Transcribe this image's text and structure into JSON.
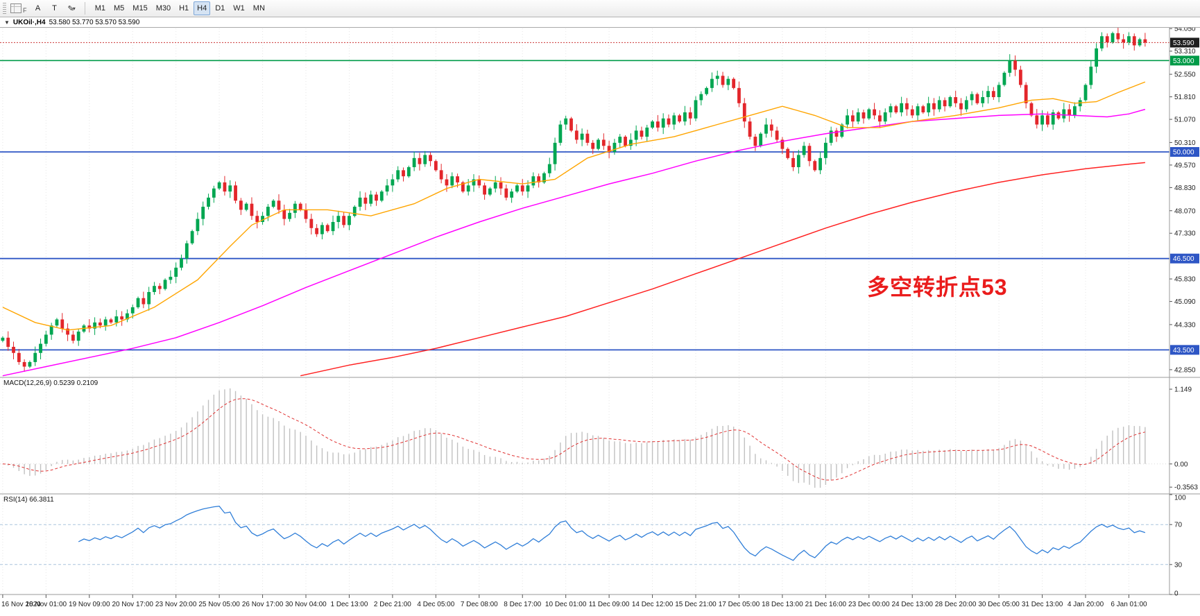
{
  "toolbar": {
    "f_label": "F",
    "buttons": [
      {
        "name": "annotate-tool",
        "label": "A"
      },
      {
        "name": "text-tool",
        "label": "T"
      },
      {
        "name": "draw-tool",
        "label": "✎"
      }
    ],
    "caret": "▾",
    "timeframes": [
      {
        "label": "M1",
        "active": false
      },
      {
        "label": "M5",
        "active": false
      },
      {
        "label": "M15",
        "active": false
      },
      {
        "label": "M30",
        "active": false
      },
      {
        "label": "H1",
        "active": false
      },
      {
        "label": "H4",
        "active": true
      },
      {
        "label": "D1",
        "active": false
      },
      {
        "label": "W1",
        "active": false
      },
      {
        "label": "MN",
        "active": false
      }
    ]
  },
  "chart": {
    "dropdown_icon": "▼",
    "title": "UKOil·,H4",
    "ohlc": "53.580 53.770 53.570 53.590",
    "annotation": "多空转折点53"
  },
  "macd_panel": {
    "label": "MACD(12,26,9) 0.5239 0.2109"
  },
  "rsi_panel": {
    "label": "RSI(14) 66.3811"
  },
  "colors": {
    "up": "#00A651",
    "down": "#E3262B",
    "ma_fast": "#FFA500",
    "ma_mid": "#FF00FF",
    "ma_slow": "#FF2020",
    "macd_hist": "#c0c0c0",
    "macd_signal": "#e03131",
    "rsi_line": "#2f7ed8",
    "rsi_levels": "#a8c4de",
    "grid": "#e4e4e4",
    "last_price_badge": "#1f1f1f",
    "last_price_line": "#cc3333",
    "annotation": "#ea1c1c"
  },
  "chart_data": {
    "type": "candlestick+indicators",
    "symbol": "UKOil",
    "timeframe": "H4",
    "price_range": [
      42.62,
      54.42
    ],
    "current_price": 53.59,
    "closes": [
      43.9,
      43.6,
      43.4,
      43.1,
      42.95,
      43.1,
      43.4,
      43.7,
      44.0,
      44.3,
      44.5,
      44.2,
      44.0,
      43.8,
      44.1,
      44.3,
      44.2,
      44.4,
      44.3,
      44.5,
      44.4,
      44.6,
      44.5,
      44.7,
      44.9,
      45.2,
      45.0,
      45.4,
      45.6,
      45.5,
      45.8,
      45.9,
      46.2,
      46.5,
      47.0,
      47.4,
      47.8,
      48.2,
      48.5,
      48.8,
      49.0,
      48.7,
      48.9,
      48.4,
      48.1,
      48.3,
      47.9,
      47.7,
      47.9,
      48.2,
      48.4,
      48.1,
      47.8,
      48.0,
      48.3,
      48.1,
      47.8,
      47.5,
      47.3,
      47.6,
      47.4,
      47.7,
      47.9,
      47.6,
      47.9,
      48.2,
      48.5,
      48.3,
      48.6,
      48.4,
      48.7,
      48.9,
      49.1,
      49.4,
      49.2,
      49.5,
      49.8,
      49.6,
      49.9,
      49.7,
      49.4,
      49.1,
      48.9,
      49.2,
      49.0,
      48.7,
      48.9,
      49.1,
      48.9,
      48.6,
      48.8,
      49.0,
      48.8,
      48.5,
      48.7,
      48.9,
      48.7,
      48.9,
      49.2,
      49.0,
      49.3,
      49.6,
      50.3,
      50.9,
      51.1,
      50.7,
      50.4,
      50.6,
      50.3,
      50.1,
      50.4,
      50.2,
      50.0,
      50.3,
      50.5,
      50.2,
      50.4,
      50.7,
      50.5,
      50.8,
      51.0,
      50.8,
      51.1,
      50.9,
      51.2,
      51.0,
      51.3,
      51.1,
      51.7,
      51.9,
      52.1,
      52.4,
      52.5,
      52.2,
      52.4,
      52.1,
      51.6,
      51.0,
      50.5,
      50.2,
      50.6,
      50.9,
      50.7,
      50.4,
      50.1,
      49.8,
      49.5,
      49.9,
      50.2,
      49.7,
      49.4,
      49.8,
      50.3,
      50.7,
      50.5,
      50.9,
      51.2,
      51.0,
      51.3,
      51.1,
      51.4,
      51.2,
      51.0,
      51.3,
      51.5,
      51.3,
      51.6,
      51.4,
      51.2,
      51.5,
      51.3,
      51.6,
      51.4,
      51.7,
      51.5,
      51.8,
      51.6,
      51.4,
      51.7,
      51.9,
      51.6,
      51.8,
      52.0,
      51.8,
      52.2,
      52.6,
      53.0,
      52.7,
      52.2,
      51.6,
      51.2,
      50.9,
      51.2,
      50.9,
      51.3,
      51.1,
      51.4,
      51.2,
      51.5,
      51.7,
      52.2,
      52.8,
      53.4,
      53.8,
      53.6,
      53.9,
      53.7,
      53.6,
      53.8,
      53.5,
      53.7,
      53.59
    ],
    "price_axis_labels": [
      54.05,
      53.31,
      52.55,
      51.81,
      51.07,
      50.31,
      49.57,
      48.83,
      48.07,
      47.33,
      45.83,
      45.09,
      44.33,
      42.85
    ],
    "hlines": [
      {
        "price": 53.0,
        "color": "#009b48",
        "width": 1.6
      },
      {
        "price": 50.0,
        "color": "#2e56c5",
        "width": 1.8
      },
      {
        "price": 46.5,
        "color": "#2e56c5",
        "width": 1.8
      },
      {
        "price": 43.5,
        "color": "#2e56c5",
        "width": 1.8
      }
    ],
    "ma_fast": [
      [
        0,
        44.9
      ],
      [
        6,
        44.4
      ],
      [
        12,
        44.15
      ],
      [
        20,
        44.3
      ],
      [
        28,
        44.9
      ],
      [
        36,
        45.8
      ],
      [
        42,
        46.9
      ],
      [
        46,
        47.6
      ],
      [
        52,
        48.1
      ],
      [
        60,
        48.1
      ],
      [
        68,
        47.9
      ],
      [
        76,
        48.3
      ],
      [
        82,
        48.8
      ],
      [
        88,
        49.1
      ],
      [
        96,
        48.95
      ],
      [
        102,
        49.1
      ],
      [
        108,
        49.8
      ],
      [
        116,
        50.25
      ],
      [
        124,
        50.5
      ],
      [
        132,
        50.9
      ],
      [
        138,
        51.2
      ],
      [
        144,
        51.5
      ],
      [
        150,
        51.2
      ],
      [
        156,
        50.8
      ],
      [
        162,
        50.8
      ],
      [
        168,
        51.0
      ],
      [
        176,
        51.2
      ],
      [
        184,
        51.45
      ],
      [
        190,
        51.7
      ],
      [
        194,
        51.75
      ],
      [
        198,
        51.6
      ],
      [
        202,
        51.65
      ],
      [
        206,
        51.95
      ],
      [
        211,
        52.3
      ]
    ],
    "ma_mid": [
      [
        0,
        42.65
      ],
      [
        8,
        42.95
      ],
      [
        16,
        43.25
      ],
      [
        24,
        43.55
      ],
      [
        32,
        43.9
      ],
      [
        40,
        44.4
      ],
      [
        48,
        44.95
      ],
      [
        56,
        45.55
      ],
      [
        64,
        46.1
      ],
      [
        72,
        46.65
      ],
      [
        80,
        47.2
      ],
      [
        88,
        47.7
      ],
      [
        96,
        48.15
      ],
      [
        104,
        48.55
      ],
      [
        112,
        48.95
      ],
      [
        120,
        49.3
      ],
      [
        128,
        49.7
      ],
      [
        136,
        50.05
      ],
      [
        144,
        50.35
      ],
      [
        152,
        50.6
      ],
      [
        160,
        50.8
      ],
      [
        168,
        51.0
      ],
      [
        176,
        51.1
      ],
      [
        184,
        51.2
      ],
      [
        192,
        51.25
      ],
      [
        198,
        51.2
      ],
      [
        204,
        51.15
      ],
      [
        208,
        51.25
      ],
      [
        211,
        51.4
      ]
    ],
    "ma_slow": [
      [
        55,
        42.65
      ],
      [
        64,
        43.0
      ],
      [
        72,
        43.25
      ],
      [
        80,
        43.55
      ],
      [
        88,
        43.9
      ],
      [
        96,
        44.25
      ],
      [
        104,
        44.6
      ],
      [
        112,
        45.05
      ],
      [
        120,
        45.5
      ],
      [
        128,
        46.0
      ],
      [
        136,
        46.5
      ],
      [
        144,
        47.0
      ],
      [
        152,
        47.5
      ],
      [
        160,
        47.95
      ],
      [
        168,
        48.35
      ],
      [
        176,
        48.7
      ],
      [
        184,
        49.0
      ],
      [
        192,
        49.25
      ],
      [
        200,
        49.45
      ],
      [
        208,
        49.6
      ],
      [
        211,
        49.65
      ]
    ],
    "macd": {
      "params": [
        12,
        26,
        9
      ],
      "last_main": 0.5239,
      "last_signal": 0.2109,
      "scale_labels": [
        {
          "v": 1.149,
          "t": "1.149"
        },
        {
          "v": 0,
          "t": "0.00"
        },
        {
          "v": -0.3563,
          "t": "-0.3563"
        }
      ]
    },
    "rsi": {
      "period": 14,
      "last": 66.3811,
      "levels": [
        70,
        30
      ],
      "scale_labels": [
        100,
        70,
        30,
        0
      ]
    },
    "time_labels": [
      "16 Nov 2020",
      "18 Nov 01:00",
      "19 Nov 09:00",
      "20 Nov 17:00",
      "23 Nov 20:00",
      "25 Nov 05:00",
      "26 Nov 17:00",
      "30 Nov 04:00",
      "1 Dec 13:00",
      "2 Dec 21:00",
      "4 Dec 05:00",
      "7 Dec 08:00",
      "8 Dec 17:00",
      "10 Dec 01:00",
      "11 Dec 09:00",
      "14 Dec 12:00",
      "15 Dec 21:00",
      "17 Dec 05:00",
      "18 Dec 13:00",
      "21 Dec 16:00",
      "23 Dec 00:00",
      "24 Dec 13:00",
      "28 Dec 20:00",
      "30 Dec 05:00",
      "31 Dec 13:00",
      "4 Jan 20:00",
      "6 Jan 01:00"
    ]
  }
}
